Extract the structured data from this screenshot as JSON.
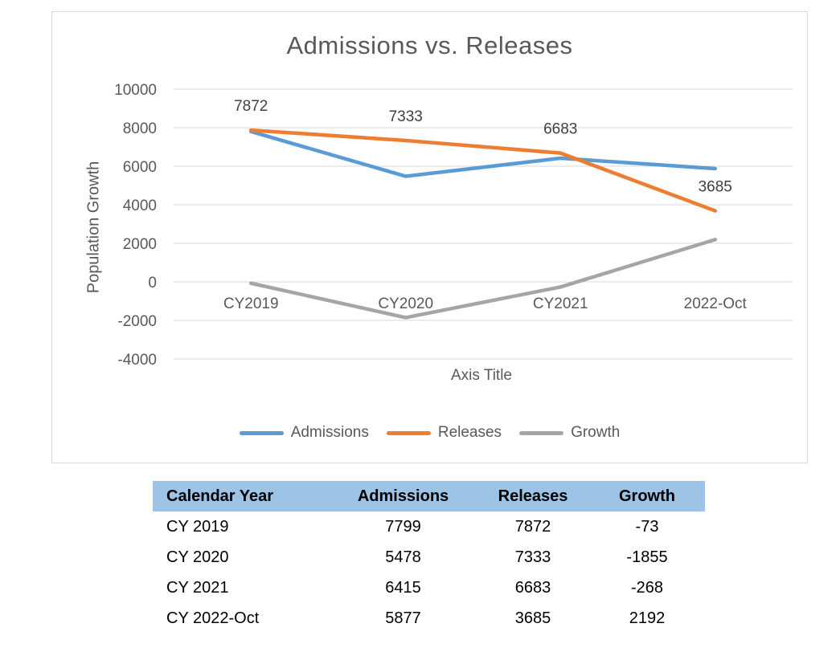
{
  "chart_data": {
    "type": "line",
    "title": "Admissions vs. Releases",
    "categories": [
      "CY2019",
      "CY2020",
      "CY2021",
      "2022-Oct"
    ],
    "series": [
      {
        "name": "Admissions",
        "color": "#5B9BD5",
        "values": [
          7799,
          5478,
          6415,
          5877
        ],
        "data_labels": false
      },
      {
        "name": "Releases",
        "color": "#ED7D31",
        "values": [
          7872,
          7333,
          6683,
          3685
        ],
        "data_labels": true
      },
      {
        "name": "Growth",
        "color": "#A5A5A5",
        "values": [
          -73,
          -1855,
          -268,
          2192
        ],
        "data_labels": false
      }
    ],
    "xlabel": "Axis Title",
    "ylabel": "Population Growth",
    "ylim": [
      -4000,
      10000
    ],
    "ytick_step": 2000,
    "grid": true,
    "legend_position": "bottom",
    "text_color": "#595959",
    "gridline_color": "#D9D9D9",
    "data_label_color": "#404040"
  },
  "table": {
    "header_bg": "#9DC3E6",
    "headers": [
      "Calendar Year",
      "Admissions",
      "Releases",
      "Growth"
    ],
    "rows": [
      [
        "CY 2019",
        "7799",
        "7872",
        "-73"
      ],
      [
        "CY 2020",
        "5478",
        "7333",
        "-1855"
      ],
      [
        "CY 2021",
        "6415",
        "6683",
        "-268"
      ],
      [
        "CY 2022-Oct",
        "5877",
        "3685",
        "2192"
      ]
    ]
  }
}
